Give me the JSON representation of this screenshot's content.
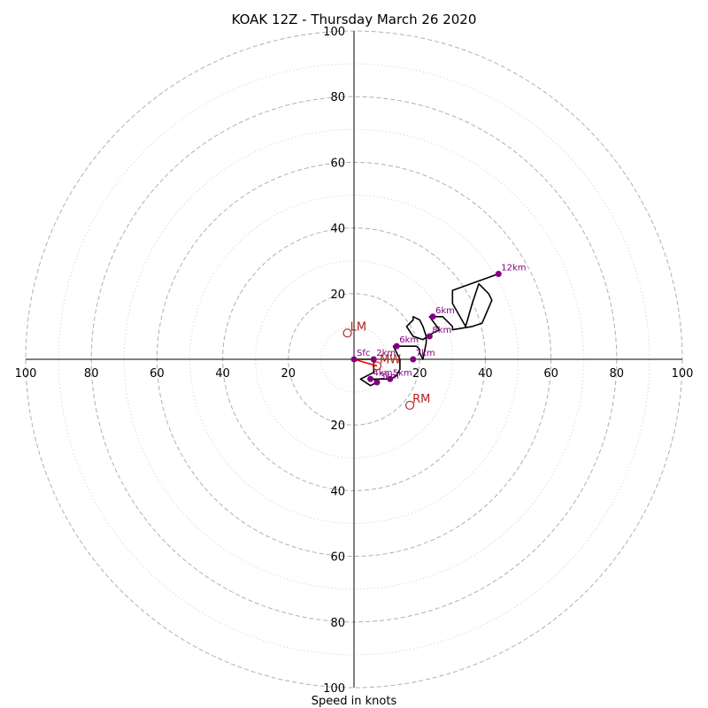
{
  "chart_data": {
    "type": "line",
    "title": "KOAK 12Z - Thursday March 26 2020",
    "xlabel": "Speed in knots",
    "ylabel": "",
    "rings_major": [
      20,
      40,
      60,
      80,
      100
    ],
    "rings_minor": [
      10,
      30,
      50,
      70,
      90
    ],
    "ticks": {
      "left": [
        "100",
        "80",
        "60",
        "40",
        "20"
      ],
      "right": [
        "20",
        "40",
        "60",
        "80",
        "100"
      ],
      "top": [
        "100",
        "80",
        "60",
        "40",
        "20"
      ],
      "bottom": [
        "20",
        "40",
        "60",
        "80",
        "100"
      ]
    },
    "xlim": [
      -100,
      100
    ],
    "ylim": [
      -100,
      100
    ],
    "trace": {
      "u": [
        0,
        6,
        6,
        2,
        2,
        5,
        7,
        6,
        8,
        11,
        13,
        14,
        14,
        13,
        12,
        14,
        18,
        19,
        20,
        20,
        21,
        22,
        22,
        21,
        20,
        18,
        18,
        16,
        18,
        21,
        24,
        26,
        23,
        27,
        30,
        30,
        36,
        39,
        42,
        41,
        38,
        36,
        34,
        30,
        30,
        44
      ],
      "v": [
        0,
        0,
        -4,
        -6,
        -6,
        -8,
        -7,
        -6,
        -6,
        -6,
        -5,
        -3,
        0,
        2,
        4,
        4,
        4,
        4,
        3,
        2,
        0,
        5,
        7,
        10,
        12,
        13,
        12,
        10,
        7,
        6,
        8,
        9,
        13,
        13,
        10,
        9,
        10,
        11,
        18,
        20,
        23,
        17,
        10,
        17,
        21,
        26
      ]
    },
    "height_points": [
      {
        "label": "Sfc",
        "u": 0,
        "v": 0
      },
      {
        "label": "2km",
        "u": 6,
        "v": 0
      },
      {
        "label": "3km",
        "u": 7,
        "v": -7
      },
      {
        "label": "4km",
        "u": 5,
        "v": -6
      },
      {
        "label": "5km",
        "u": 11,
        "v": -6
      },
      {
        "label": "6km",
        "u": 13,
        "v": 4
      },
      {
        "label": "6km",
        "u": 24,
        "v": 13
      },
      {
        "label": "7km",
        "u": 18,
        "v": 0
      },
      {
        "label": "8km",
        "u": 23,
        "v": 7
      },
      {
        "label": "12km",
        "u": 44,
        "v": 26
      }
    ],
    "motion_points": [
      {
        "label": "LM",
        "u": -2,
        "v": 8
      },
      {
        "label": "RM",
        "u": 17,
        "v": -14
      },
      {
        "label": "MW",
        "u": 7,
        "v": -2
      }
    ],
    "mean_wind_vector": {
      "from_u": 0,
      "from_v": 0,
      "to_u": 7,
      "to_v": -2
    },
    "colors": {
      "trace": "#000000",
      "points": "#800080",
      "motion": "#b22222",
      "vector": "#ff0000",
      "grid": "#b0b0b0",
      "axis": "#000000"
    }
  }
}
